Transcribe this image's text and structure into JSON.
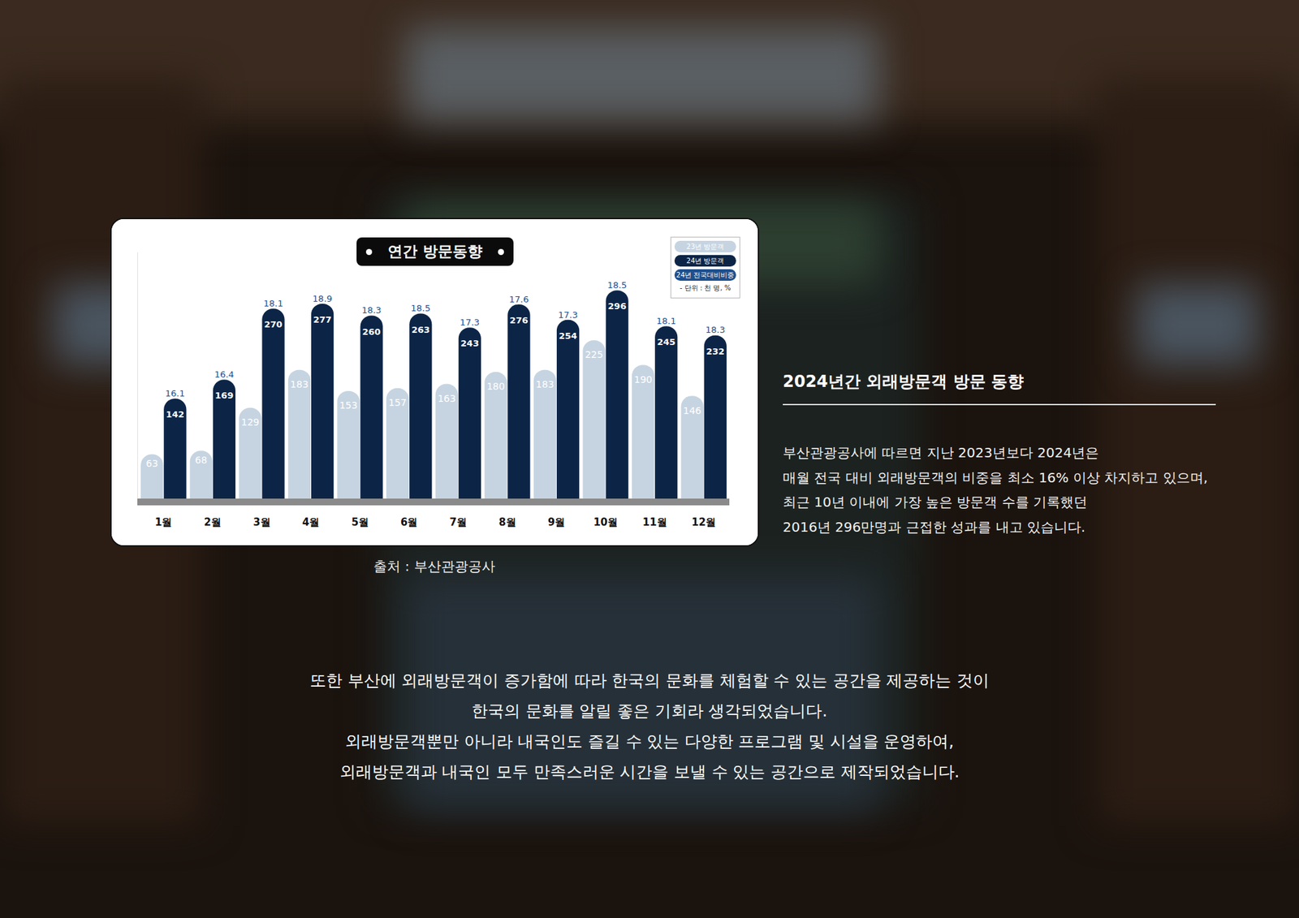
{
  "chart_data": {
    "type": "bar",
    "title": "연간 방문동향",
    "categories": [
      "1월",
      "2월",
      "3월",
      "4월",
      "5월",
      "6월",
      "7월",
      "8월",
      "9월",
      "10월",
      "11월",
      "12월"
    ],
    "series": [
      {
        "name": "23년 방문객",
        "color": "#c6d4e1",
        "values": [
          63,
          68,
          129,
          183,
          153,
          157,
          163,
          180,
          183,
          225,
          190,
          146
        ]
      },
      {
        "name": "24년 방문객",
        "color": "#0c2547",
        "values": [
          142,
          169,
          270,
          277,
          260,
          263,
          243,
          276,
          254,
          296,
          245,
          232
        ]
      },
      {
        "name": "24년 전국대비비중",
        "type": "text",
        "color": "#1f4f8c",
        "values": [
          16.1,
          16.4,
          18.1,
          18.9,
          18.3,
          18.5,
          17.3,
          17.6,
          17.3,
          18.5,
          18.1,
          18.3
        ]
      }
    ],
    "ylim": [
      0,
      350
    ],
    "grid": false,
    "data_labels": true,
    "tick_labels": "x",
    "legend": "upper right",
    "annotations": [
      "- 단위 : 천 명, %"
    ]
  },
  "source": "출처 : 부산관광공사",
  "side_text": {
    "heading": "2024년간 외래방문객 방문 동향",
    "lines": [
      "부산관광공사에 따르면 지난 2023년보다 2024년은",
      "매월 전국 대비 외래방문객의 비중을 최소 16% 이상 차지하고 있으며,",
      "최근 10년 이내에 가장 높은 방문객 수를 기록했던",
      "2016년 296만명과 근접한 성과를 내고 있습니다."
    ]
  },
  "bottom_text": [
    "또한 부산에 외래방문객이 증가함에 따라 한국의 문화를 체험할 수 있는 공간을 제공하는 것이",
    "한국의 문화를 알릴 좋은 기회라 생각되었습니다.",
    "외래방문객뿐만 아니라 내국인도 즐길 수 있는 다양한 프로그램 및 시설을 운영하여,",
    "외래방문객과 내국인 모두 만족스러운 시간을 보낼 수 있는 공간으로 제작되었습니다."
  ]
}
